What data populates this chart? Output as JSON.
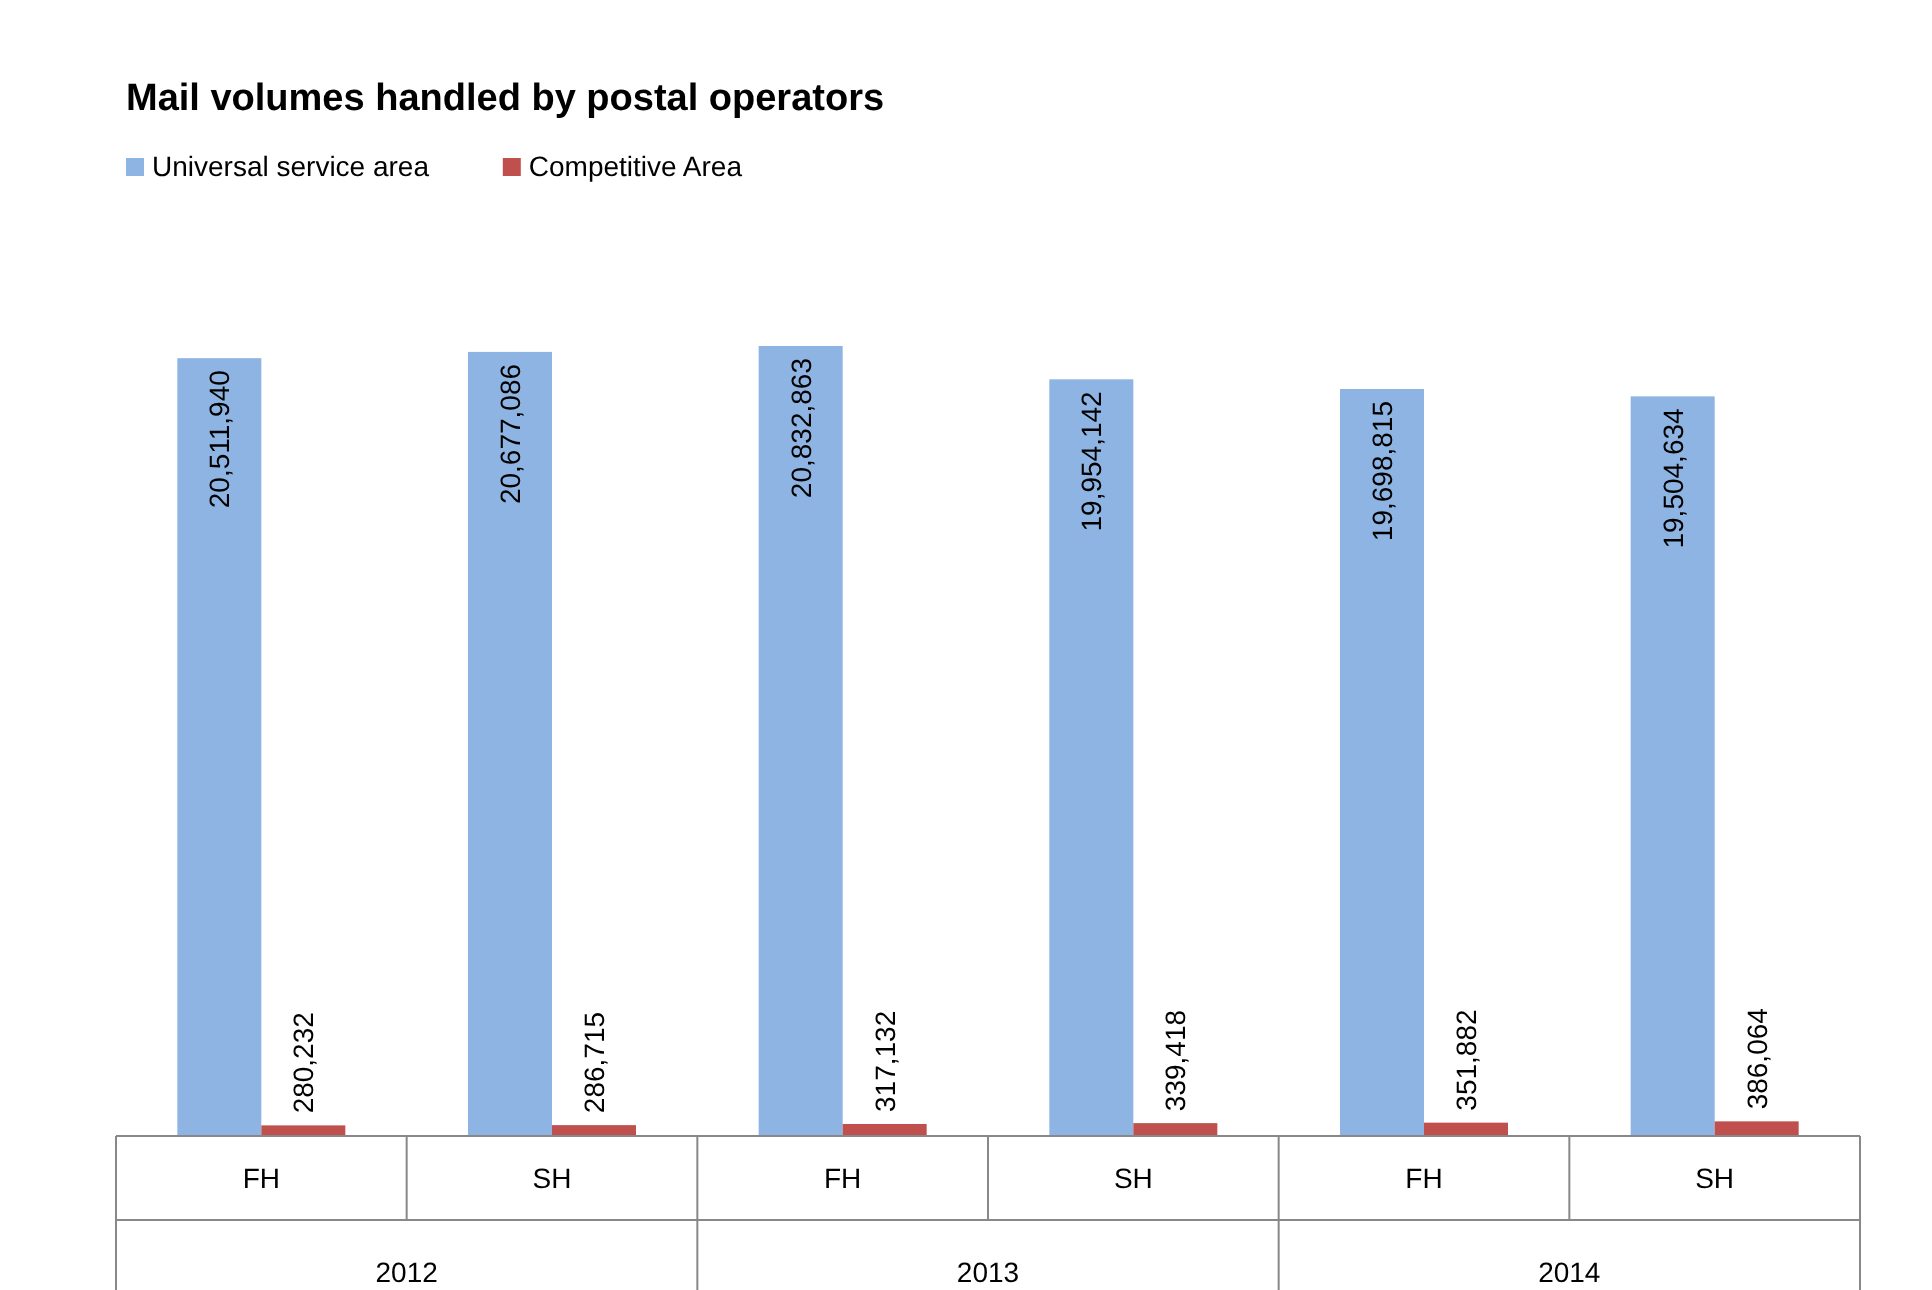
{
  "chart_data": {
    "type": "bar",
    "title": "Mail volumes handled by postal operators",
    "categories": [
      "FH",
      "SH",
      "FH",
      "SH",
      "FH",
      "SH"
    ],
    "annotations": [
      "2012",
      "2013",
      "2014"
    ],
    "series": [
      {
        "name": "Universal service area",
        "color": "#8eb4e3",
        "values": [
          20511940,
          20677086,
          20832863,
          19954142,
          19698815,
          19504634
        ],
        "value_labels": [
          "20,511,940",
          "20,677,086",
          "20,832,863",
          "19,954,142",
          "19,698,815",
          "19,504,634"
        ]
      },
      {
        "name": "Competitive Area",
        "color": "#c0504d",
        "values": [
          280232,
          286715,
          317132,
          339418,
          351882,
          386064
        ],
        "value_labels": [
          "280,232",
          "286,715",
          "317,132",
          "339,418",
          "351,882",
          "386,064"
        ]
      }
    ],
    "legend": "top left"
  }
}
